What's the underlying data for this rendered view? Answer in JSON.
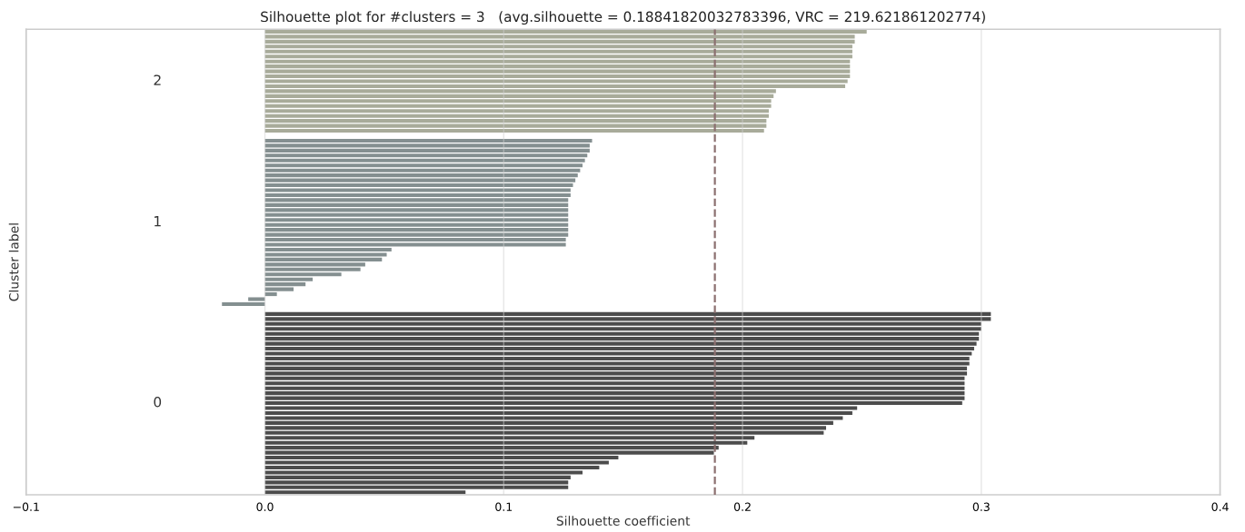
{
  "chart_data": {
    "type": "bar",
    "orientation": "horizontal",
    "title": "Silhouette plot for #clusters = 3   (avg.silhouette = 0.18841820032783396, VRC = 219.621861202774)",
    "xlabel": "Silhouette coefficient",
    "ylabel": "Cluster label",
    "xlim": [
      -0.1,
      0.4
    ],
    "xticks": [
      {
        "value": -0.1,
        "label": "−0.1"
      },
      {
        "value": 0.0,
        "label": "0.0"
      },
      0.1,
      0.2,
      0.3,
      0.4
    ],
    "tick_labels": "x",
    "grid": "x",
    "annotations": [
      "2",
      "1",
      "0"
    ],
    "ref_lines": [
      {
        "axis": "x",
        "value": 0.18841820032783396,
        "color": "#8c7070",
        "line_style": "dashed"
      }
    ],
    "categories": [
      null,
      null,
      null,
      null,
      null,
      null,
      null,
      null,
      null,
      null,
      null,
      null,
      null,
      null,
      null,
      null,
      null,
      null,
      null,
      null,
      null,
      null,
      null,
      null,
      null,
      null,
      null,
      null,
      null,
      null,
      null,
      null,
      null,
      null,
      null,
      null,
      null,
      null,
      null,
      null,
      null,
      null,
      null,
      null,
      null,
      null,
      null,
      null,
      null,
      null,
      null,
      null,
      null,
      null,
      null,
      null,
      null,
      null,
      null,
      null,
      null,
      null,
      null,
      null,
      null,
      null,
      null,
      null,
      null,
      null,
      null,
      null,
      null,
      null,
      null,
      null,
      null,
      null,
      null,
      null,
      null,
      null,
      null,
      null,
      null,
      null,
      null,
      null,
      null,
      null,
      null,
      null,
      null,
      null
    ],
    "series": [
      {
        "color": "#a8ab9a",
        "values": [
          0.252,
          0.247,
          0.247,
          0.246,
          0.246,
          0.246,
          0.245,
          0.245,
          0.245,
          0.245,
          0.244,
          0.243,
          0.214,
          0.213,
          0.212,
          0.212,
          0.211,
          0.211,
          0.21,
          0.21,
          0.209,
          null,
          null,
          null,
          null,
          null,
          null,
          null,
          null,
          null,
          null,
          null,
          null,
          null,
          null,
          null,
          null,
          null,
          null,
          null,
          null,
          null,
          null,
          null,
          null,
          null,
          null,
          null,
          null,
          null,
          null,
          null,
          null,
          null,
          null,
          null,
          null,
          null,
          null,
          null,
          null,
          null,
          null,
          null,
          null,
          null,
          null,
          null,
          null,
          null,
          null,
          null,
          null,
          null,
          null,
          null,
          null,
          null,
          null,
          null,
          null,
          null,
          null,
          null,
          null,
          null,
          null,
          null,
          null,
          null,
          null,
          null,
          null,
          null
        ]
      },
      {
        "color": "#848f90",
        "values": [
          null,
          null,
          null,
          null,
          null,
          null,
          null,
          null,
          null,
          null,
          null,
          null,
          null,
          null,
          null,
          null,
          null,
          null,
          null,
          null,
          null,
          null,
          0.137,
          0.136,
          0.136,
          0.135,
          0.134,
          0.133,
          0.132,
          0.131,
          0.13,
          0.129,
          0.128,
          0.128,
          0.127,
          0.127,
          0.127,
          0.127,
          0.127,
          0.127,
          0.127,
          0.127,
          0.126,
          0.126,
          0.053,
          0.051,
          0.049,
          0.042,
          0.04,
          0.032,
          0.02,
          0.017,
          0.012,
          0.005,
          -0.007,
          -0.018,
          null,
          null,
          null,
          null,
          null,
          null,
          null,
          null,
          null,
          null,
          null,
          null,
          null,
          null,
          null,
          null,
          null,
          null,
          null,
          null,
          null,
          null,
          null,
          null,
          null,
          null,
          null,
          null,
          null,
          null,
          null,
          null,
          null,
          null,
          null,
          null,
          null,
          null
        ]
      },
      {
        "color": "#4c4c4c",
        "values": [
          null,
          null,
          null,
          null,
          null,
          null,
          null,
          null,
          null,
          null,
          null,
          null,
          null,
          null,
          null,
          null,
          null,
          null,
          null,
          null,
          null,
          null,
          null,
          null,
          null,
          null,
          null,
          null,
          null,
          null,
          null,
          null,
          null,
          null,
          null,
          null,
          null,
          null,
          null,
          null,
          null,
          null,
          null,
          null,
          null,
          null,
          null,
          null,
          null,
          null,
          null,
          null,
          null,
          null,
          null,
          null,
          null,
          0.304,
          0.304,
          0.3,
          0.3,
          0.299,
          0.299,
          0.298,
          0.297,
          0.296,
          0.295,
          0.295,
          0.294,
          0.294,
          0.293,
          0.293,
          0.293,
          0.293,
          0.293,
          0.292,
          0.248,
          0.246,
          0.242,
          0.238,
          0.235,
          0.234,
          0.205,
          0.202,
          0.19,
          0.188,
          0.148,
          0.144,
          0.14,
          0.133,
          0.128,
          0.127,
          0.127,
          0.084
        ]
      }
    ]
  }
}
